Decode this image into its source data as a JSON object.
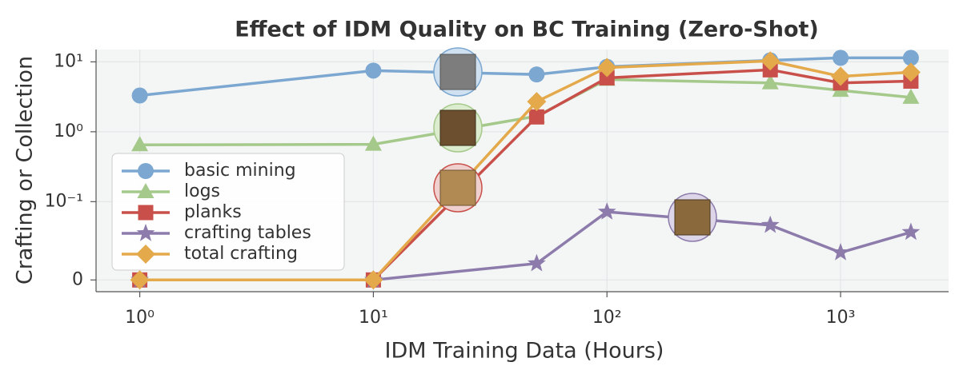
{
  "chart_data": {
    "type": "line",
    "title": "Effect of IDM Quality on BC Training (Zero-Shot)",
    "x_label": "IDM Training Data (Hours)",
    "y_label": "Crafting or Collection",
    "x": [
      1,
      10,
      50,
      100,
      500,
      1000,
      2000
    ],
    "xscale": "log",
    "yscale": "symlog",
    "linthresh": 0.1,
    "xlim": [
      0.65,
      2900
    ],
    "ylim": [
      -0.015,
      15
    ],
    "xticks": [
      {
        "value": 1,
        "label": "10⁰"
      },
      {
        "value": 10,
        "label": "10¹"
      },
      {
        "value": 100,
        "label": "10²"
      },
      {
        "value": 1000,
        "label": "10³"
      }
    ],
    "yticks": [
      0,
      {
        "value": 0.1,
        "label": "10⁻¹"
      },
      {
        "value": 1,
        "label": "10⁰"
      },
      {
        "value": 10,
        "label": "10¹"
      }
    ],
    "grid": true,
    "legend": "center left",
    "series": [
      {
        "name": "basic mining",
        "color": "#7ba7d0",
        "marker": "circle",
        "values": [
          3.3,
          7.5,
          6.6,
          8.5,
          10.5,
          11.4,
          11.4
        ]
      },
      {
        "name": "logs",
        "color": "#a5c98a",
        "marker": "triangle",
        "values": [
          0.65,
          0.66,
          1.67,
          5.6,
          5.0,
          3.9,
          3.1
        ]
      },
      {
        "name": "planks",
        "color": "#c9504a",
        "marker": "square",
        "values": [
          0,
          0,
          1.63,
          5.9,
          7.7,
          5.0,
          5.3
        ]
      },
      {
        "name": "crafting tables",
        "color": "#8c7bab",
        "marker": "star",
        "values": [
          0,
          0,
          0.021,
          0.087,
          0.07,
          0.035,
          0.061
        ]
      },
      {
        "name": "total crafting",
        "color": "#e3a94b",
        "marker": "diamond",
        "values": [
          0,
          0,
          2.7,
          8.3,
          10.3,
          6.2,
          7.1
        ]
      }
    ]
  }
}
